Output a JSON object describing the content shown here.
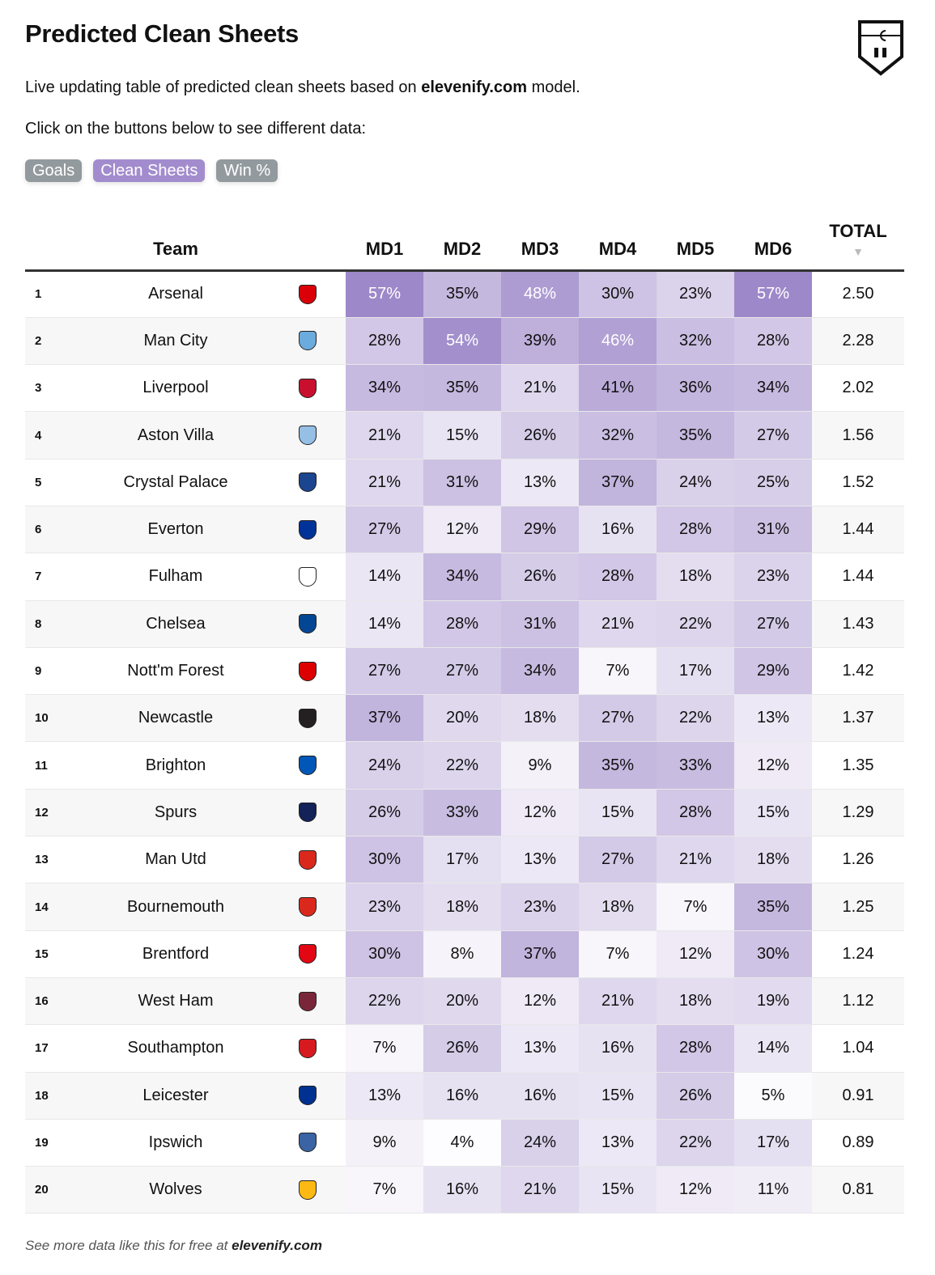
{
  "title": "Predicted Clean Sheets",
  "intro": {
    "prefix": "Live updating table of predicted clean sheets based on ",
    "brand": "elevenify.com",
    "suffix": " model."
  },
  "instruction": "Click on the buttons below to see different data:",
  "buttons": [
    {
      "label": "Goals",
      "color": "#939a9e"
    },
    {
      "label": "Clean Sheets",
      "color": "#a28ccd",
      "active": true
    },
    {
      "label": "Win %",
      "color": "#939a9e"
    }
  ],
  "headers": {
    "team": "Team",
    "md": [
      "MD1",
      "MD2",
      "MD3",
      "MD4",
      "MD5",
      "MD6"
    ],
    "total": "TOTAL",
    "sort": "descending"
  },
  "colors": {
    "low": "#fdfcfe",
    "high": "#9d88c9"
  },
  "rows": [
    {
      "rank": "1",
      "team": "Arsenal",
      "crest": "#db0007",
      "md": [
        "57%",
        "35%",
        "48%",
        "30%",
        "23%",
        "57%"
      ],
      "total": "2.50"
    },
    {
      "rank": "2",
      "team": "Man City",
      "crest": "#6cabdd",
      "md": [
        "28%",
        "54%",
        "39%",
        "46%",
        "32%",
        "28%"
      ],
      "total": "2.28"
    },
    {
      "rank": "3",
      "team": "Liverpool",
      "crest": "#c8102e",
      "md": [
        "34%",
        "35%",
        "21%",
        "41%",
        "36%",
        "34%"
      ],
      "total": "2.02"
    },
    {
      "rank": "4",
      "team": "Aston Villa",
      "crest": "#95bfe5",
      "md": [
        "21%",
        "15%",
        "26%",
        "32%",
        "35%",
        "27%"
      ],
      "total": "1.56"
    },
    {
      "rank": "5",
      "team": "Crystal Palace",
      "crest": "#1b458f",
      "md": [
        "21%",
        "31%",
        "13%",
        "37%",
        "24%",
        "25%"
      ],
      "total": "1.52"
    },
    {
      "rank": "6",
      "team": "Everton",
      "crest": "#003399",
      "md": [
        "27%",
        "12%",
        "29%",
        "16%",
        "28%",
        "31%"
      ],
      "total": "1.44"
    },
    {
      "rank": "7",
      "team": "Fulham",
      "crest": "#ffffff",
      "md": [
        "14%",
        "34%",
        "26%",
        "28%",
        "18%",
        "23%"
      ],
      "total": "1.44"
    },
    {
      "rank": "8",
      "team": "Chelsea",
      "crest": "#034694",
      "md": [
        "14%",
        "28%",
        "31%",
        "21%",
        "22%",
        "27%"
      ],
      "total": "1.43"
    },
    {
      "rank": "9",
      "team": "Nott'm Forest",
      "crest": "#dd0000",
      "md": [
        "27%",
        "27%",
        "34%",
        "7%",
        "17%",
        "29%"
      ],
      "total": "1.42"
    },
    {
      "rank": "10",
      "team": "Newcastle",
      "crest": "#241f20",
      "md": [
        "37%",
        "20%",
        "18%",
        "27%",
        "22%",
        "13%"
      ],
      "total": "1.37"
    },
    {
      "rank": "11",
      "team": "Brighton",
      "crest": "#0057b8",
      "md": [
        "24%",
        "22%",
        "9%",
        "35%",
        "33%",
        "12%"
      ],
      "total": "1.35"
    },
    {
      "rank": "12",
      "team": "Spurs",
      "crest": "#132257",
      "md": [
        "26%",
        "33%",
        "12%",
        "15%",
        "28%",
        "15%"
      ],
      "total": "1.29"
    },
    {
      "rank": "13",
      "team": "Man Utd",
      "crest": "#da291c",
      "md": [
        "30%",
        "17%",
        "13%",
        "27%",
        "21%",
        "18%"
      ],
      "total": "1.26"
    },
    {
      "rank": "14",
      "team": "Bournemouth",
      "crest": "#da291c",
      "md": [
        "23%",
        "18%",
        "23%",
        "18%",
        "7%",
        "35%"
      ],
      "total": "1.25"
    },
    {
      "rank": "15",
      "team": "Brentford",
      "crest": "#e30613",
      "md": [
        "30%",
        "8%",
        "37%",
        "7%",
        "12%",
        "30%"
      ],
      "total": "1.24"
    },
    {
      "rank": "16",
      "team": "West Ham",
      "crest": "#7a263a",
      "md": [
        "22%",
        "20%",
        "12%",
        "21%",
        "18%",
        "19%"
      ],
      "total": "1.12"
    },
    {
      "rank": "17",
      "team": "Southampton",
      "crest": "#d71920",
      "md": [
        "7%",
        "26%",
        "13%",
        "16%",
        "28%",
        "14%"
      ],
      "total": "1.04"
    },
    {
      "rank": "18",
      "team": "Leicester",
      "crest": "#003090",
      "md": [
        "13%",
        "16%",
        "16%",
        "15%",
        "26%",
        "5%"
      ],
      "total": "0.91"
    },
    {
      "rank": "19",
      "team": "Ipswich",
      "crest": "#3a64a3",
      "md": [
        "9%",
        "4%",
        "24%",
        "13%",
        "22%",
        "17%"
      ],
      "total": "0.89"
    },
    {
      "rank": "20",
      "team": "Wolves",
      "crest": "#fdb913",
      "md": [
        "7%",
        "16%",
        "21%",
        "15%",
        "12%",
        "11%"
      ],
      "total": "0.81"
    }
  ],
  "footer": {
    "prefix": "See more data like this for free at ",
    "brand": "elevenify.com"
  }
}
